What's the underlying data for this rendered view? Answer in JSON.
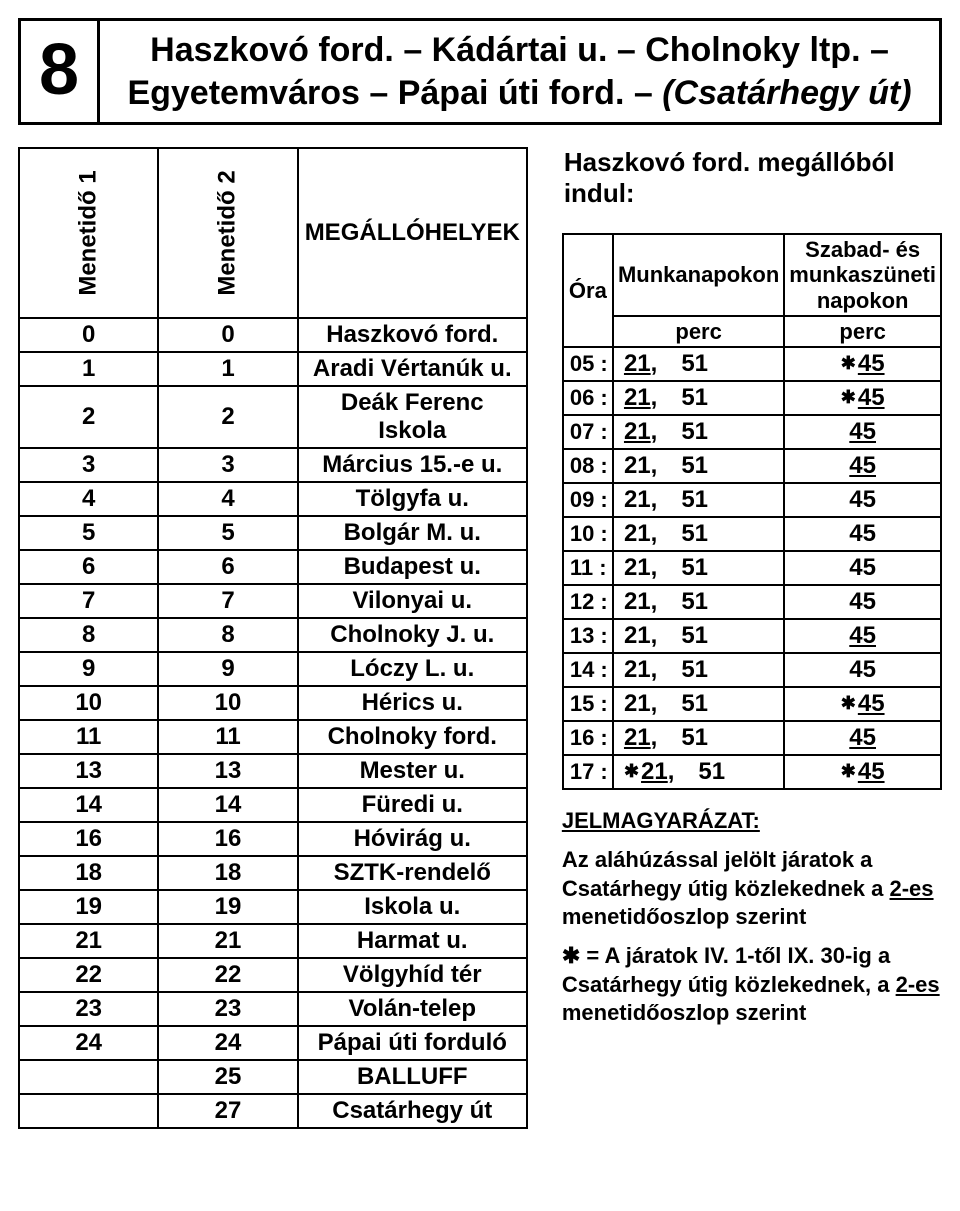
{
  "route_number": "8",
  "route_title_line1": "Haszkovó ford. – Kádártai u. – Cholnoky ltp. –",
  "route_title_line2_plain": "Egyetemváros – Pápai úti ford. – ",
  "route_title_line2_italic": "(Csatárhegy út)",
  "stops_header": {
    "m1": "Menetidő 1",
    "m2": "Menetidő 2",
    "name": "MEGÁLLÓHELYEK"
  },
  "stops": [
    {
      "m1": "0",
      "m2": "0",
      "name": "Haszkovó ford."
    },
    {
      "m1": "1",
      "m2": "1",
      "name": "Aradi Vértanúk u."
    },
    {
      "m1": "2",
      "m2": "2",
      "name": "Deák Ferenc Iskola"
    },
    {
      "m1": "3",
      "m2": "3",
      "name": "Március 15.-e u."
    },
    {
      "m1": "4",
      "m2": "4",
      "name": "Tölgyfa u."
    },
    {
      "m1": "5",
      "m2": "5",
      "name": "Bolgár M. u."
    },
    {
      "m1": "6",
      "m2": "6",
      "name": "Budapest u."
    },
    {
      "m1": "7",
      "m2": "7",
      "name": "Vilonyai u."
    },
    {
      "m1": "8",
      "m2": "8",
      "name": "Cholnoky J. u."
    },
    {
      "m1": "9",
      "m2": "9",
      "name": "Lóczy L. u."
    },
    {
      "m1": "10",
      "m2": "10",
      "name": "Hérics u."
    },
    {
      "m1": "11",
      "m2": "11",
      "name": "Cholnoky ford."
    },
    {
      "m1": "13",
      "m2": "13",
      "name": "Mester u."
    },
    {
      "m1": "14",
      "m2": "14",
      "name": "Füredi u."
    },
    {
      "m1": "16",
      "m2": "16",
      "name": "Hóvirág u."
    },
    {
      "m1": "18",
      "m2": "18",
      "name": "SZTK-rendelő"
    },
    {
      "m1": "19",
      "m2": "19",
      "name": "Iskola u."
    },
    {
      "m1": "21",
      "m2": "21",
      "name": "Harmat u."
    },
    {
      "m1": "22",
      "m2": "22",
      "name": "Völgyhíd tér"
    },
    {
      "m1": "23",
      "m2": "23",
      "name": "Volán-telep"
    },
    {
      "m1": "24",
      "m2": "24",
      "name": "Pápai úti forduló"
    },
    {
      "m1": "",
      "m2": "25",
      "name": "BALLUFF"
    },
    {
      "m1": "",
      "m2": "27",
      "name": "Csatárhegy út"
    }
  ],
  "departure_title": "Haszkovó ford. megállóból indul:",
  "tt_head": {
    "hour": "Óra",
    "work": "Munkanapokon",
    "weekend": "Szabad- és munkaszüneti napokon",
    "sub": "perc"
  },
  "timetable": [
    {
      "hour": "05 :",
      "work": [
        {
          "t": "21",
          "u": true
        },
        {
          "t": "51"
        }
      ],
      "we": [
        {
          "t": "45",
          "u": true,
          "star": true
        }
      ]
    },
    {
      "hour": "06 :",
      "work": [
        {
          "t": "21",
          "u": true
        },
        {
          "t": "51"
        }
      ],
      "we": [
        {
          "t": "45",
          "u": true,
          "star": true
        }
      ]
    },
    {
      "hour": "07 :",
      "work": [
        {
          "t": "21",
          "u": true
        },
        {
          "t": "51"
        }
      ],
      "we": [
        {
          "t": "45",
          "u": true
        }
      ]
    },
    {
      "hour": "08 :",
      "work": [
        {
          "t": "21"
        },
        {
          "t": "51"
        }
      ],
      "we": [
        {
          "t": "45",
          "u": true
        }
      ]
    },
    {
      "hour": "09 :",
      "work": [
        {
          "t": "21"
        },
        {
          "t": "51"
        }
      ],
      "we": [
        {
          "t": "45"
        }
      ]
    },
    {
      "hour": "10 :",
      "work": [
        {
          "t": "21"
        },
        {
          "t": "51"
        }
      ],
      "we": [
        {
          "t": "45"
        }
      ]
    },
    {
      "hour": "11 :",
      "work": [
        {
          "t": "21"
        },
        {
          "t": "51"
        }
      ],
      "we": [
        {
          "t": "45"
        }
      ]
    },
    {
      "hour": "12 :",
      "work": [
        {
          "t": "21"
        },
        {
          "t": "51"
        }
      ],
      "we": [
        {
          "t": "45"
        }
      ]
    },
    {
      "hour": "13 :",
      "work": [
        {
          "t": "21"
        },
        {
          "t": "51"
        }
      ],
      "we": [
        {
          "t": "45",
          "u": true
        }
      ]
    },
    {
      "hour": "14 :",
      "work": [
        {
          "t": "21"
        },
        {
          "t": "51"
        }
      ],
      "we": [
        {
          "t": "45"
        }
      ]
    },
    {
      "hour": "15 :",
      "work": [
        {
          "t": "21"
        },
        {
          "t": "51"
        }
      ],
      "we": [
        {
          "t": "45",
          "u": true,
          "star": true
        }
      ]
    },
    {
      "hour": "16 :",
      "work": [
        {
          "t": "21",
          "u": true
        },
        {
          "t": "51"
        }
      ],
      "we": [
        {
          "t": "45",
          "u": true
        }
      ]
    },
    {
      "hour": "17 :",
      "work": [
        {
          "t": "21",
          "u": true,
          "star": true
        },
        {
          "t": "51"
        }
      ],
      "we": [
        {
          "t": "45",
          "u": true,
          "star": true
        }
      ]
    }
  ],
  "legend_head": "JELMAGYARÁZAT:",
  "legend1_a": "Az aláhúzással jelölt járatok a Csatárhegy útig közlekednek a ",
  "legend1_b": "2-es",
  "legend1_c": " menetidőoszlop szerint",
  "legend2_sym": "✱",
  "legend2_a": " =  A járatok IV. 1-től IX. 30-ig a Csatárhegy útig közlekednek, a ",
  "legend2_b": "2-es",
  "legend2_c": " menetidőoszlop szerint",
  "star_glyph": "✱"
}
